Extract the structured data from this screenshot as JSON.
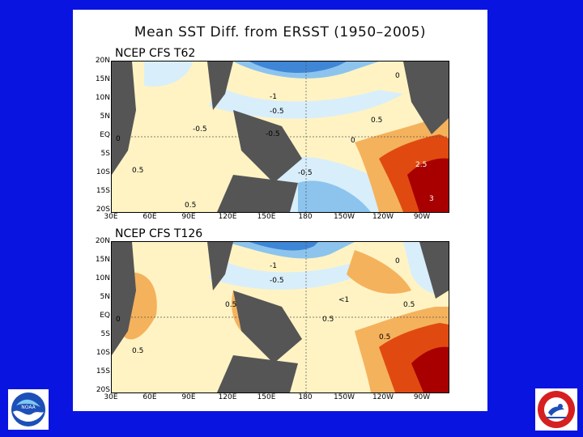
{
  "slide": {
    "title": "Mean SST Diff. from ERSST (1950–2005)"
  },
  "maps": [
    {
      "label": "NCEP CFS T62",
      "y_ticks": [
        "20N",
        "15N",
        "10N",
        "5N",
        "EQ",
        "5S",
        "10S",
        "15S",
        "20S"
      ],
      "x_ticks": [
        "30E",
        "60E",
        "90E",
        "120E",
        "150E",
        "180",
        "150W",
        "120W",
        "90W"
      ],
      "contour_labels": [
        "0",
        "-1",
        "-0.5",
        "-0.5",
        "-0.5",
        "0.5",
        "-0.5",
        "0.5",
        "0",
        "0.5",
        "2.5",
        "3",
        "0"
      ]
    },
    {
      "label": "NCEP CFS T126",
      "y_ticks": [
        "20N",
        "15N",
        "10N",
        "5N",
        "EQ",
        "5S",
        "10S",
        "15S",
        "20S"
      ],
      "x_ticks": [
        "30E",
        "60E",
        "90E",
        "120E",
        "150E",
        "180",
        "150W",
        "120W",
        "90W"
      ],
      "contour_labels": [
        "-1",
        "-0.5",
        "0",
        "0.5",
        "0.5",
        "0",
        "<1",
        "0.5",
        "0.5",
        "0.5"
      ]
    }
  ],
  "colors": {
    "background": "#0a14e0",
    "land": "#555555",
    "warm_light": "#fff3c4",
    "warm_mid": "#f5b25c",
    "warm_strong": "#e04a10",
    "warm_max": "#a80000",
    "cool_light": "#d8eefa",
    "cool_mid": "#8cc4ee",
    "cool_strong": "#3f86d6"
  },
  "logos": {
    "left": "NOAA",
    "right": "NATIONAL WEATHER SERVICE"
  },
  "icons": [
    "noaa-logo-icon",
    "nws-logo-icon"
  ]
}
